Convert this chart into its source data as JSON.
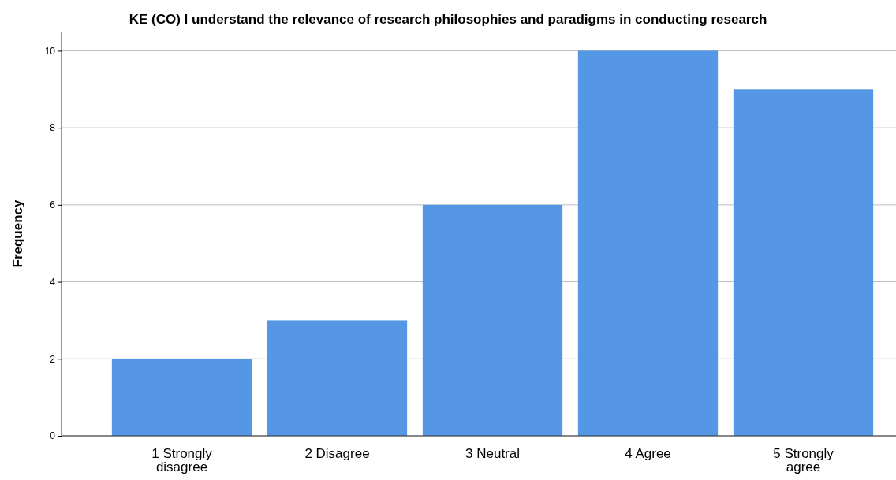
{
  "chart_data": {
    "type": "bar",
    "title": "KE (CO) I understand the relevance of research philosophies and paradigms in conducting research",
    "ylabel": "Frequency",
    "categories": [
      "1 Strongly disagree",
      "2 Disagree",
      "3 Neutral",
      "4 Agree",
      "5 Strongly agree"
    ],
    "values": [
      2,
      3,
      6,
      10,
      9
    ],
    "color": "#5596e5",
    "ylim": [
      0,
      10.5
    ],
    "yticks": [
      0,
      2,
      4,
      6,
      8,
      10
    ],
    "grid": "y"
  }
}
